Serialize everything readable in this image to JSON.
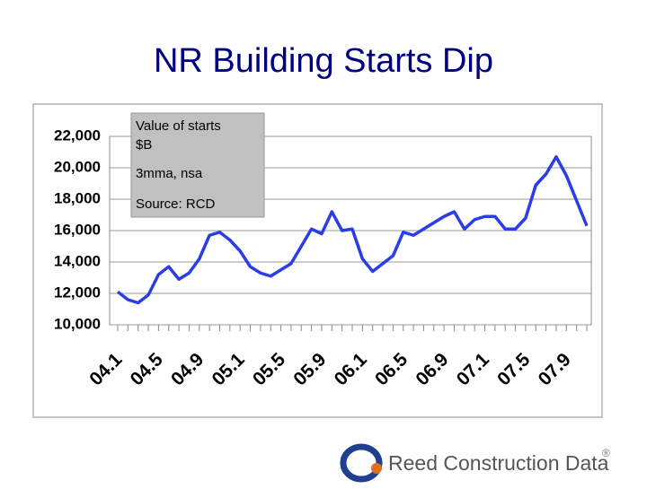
{
  "title": "NR Building Starts Dip",
  "chart_data": {
    "type": "line",
    "categories": [
      "04.1",
      null,
      null,
      null,
      "04.5",
      null,
      null,
      null,
      "04.9",
      null,
      null,
      null,
      "05.1",
      null,
      null,
      null,
      "05.5",
      null,
      null,
      null,
      "05.9",
      null,
      null,
      null,
      "06.1",
      null,
      null,
      null,
      "06.5",
      null,
      null,
      null,
      "06.9",
      null,
      null,
      null,
      "07.1",
      null,
      null,
      null,
      "07.5",
      null,
      null,
      null,
      "07.9",
      null,
      null
    ],
    "series": [
      {
        "name": "Value of starts",
        "color": "#2b3ee6",
        "values": [
          12100,
          11600,
          11400,
          11900,
          13200,
          13700,
          12900,
          13300,
          14200,
          15700,
          15900,
          15400,
          14700,
          13700,
          13300,
          13100,
          13500,
          13900,
          15000,
          16100,
          15800,
          17200,
          16000,
          16100,
          14200,
          13400,
          13900,
          14400,
          15900,
          15700,
          16100,
          16500,
          16900,
          17200,
          16100,
          16700,
          16900,
          16900,
          16100,
          16100,
          16800,
          18900,
          19600,
          20700,
          19500,
          17900,
          16300
        ]
      }
    ],
    "ylim": [
      10000,
      22000
    ],
    "yticks": [
      {
        "value": 10000,
        "label": "10,000"
      },
      {
        "value": 12000,
        "label": "12,000"
      },
      {
        "value": 14000,
        "label": "14,000"
      },
      {
        "value": 16000,
        "label": "16,000"
      },
      {
        "value": 18000,
        "label": "18,000"
      },
      {
        "value": 20000,
        "label": "20,000"
      },
      {
        "value": 22000,
        "label": "22,000"
      }
    ],
    "grid": true,
    "annotation": [
      "Value of starts",
      "$B",
      "3mma, nsa",
      "Source: RCD"
    ]
  },
  "logo": {
    "text": "Reed Construction Data",
    "mark": "®"
  }
}
